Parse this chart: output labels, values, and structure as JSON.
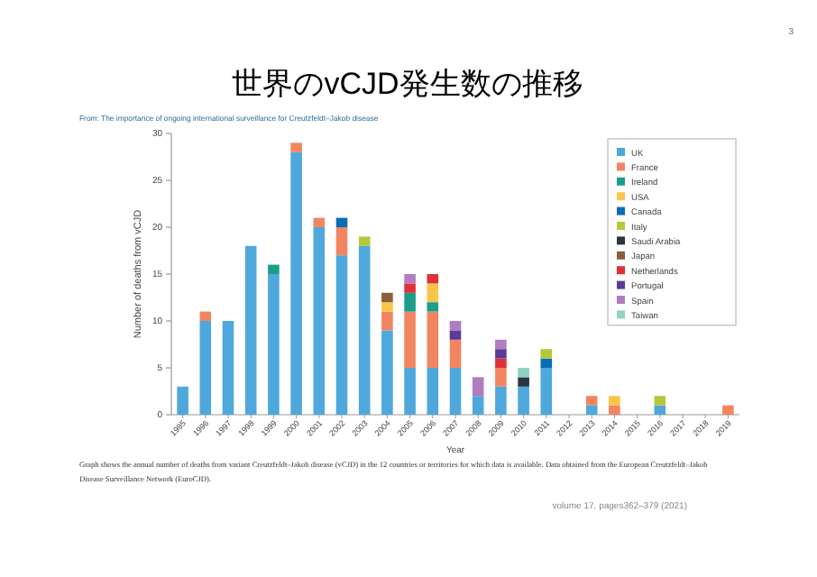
{
  "chart_data": {
    "type": "bar",
    "title": "世界のvCJD発生数の推移",
    "subtitle": "From: The importance of ongoing international surveillance for Creutzfeldt–Jakob disease",
    "xlabel": "Year",
    "ylabel": "Number of deaths from vCJD",
    "annotations": [
      "3",
      "Graph shows the annual number of deaths from variant Creutzfeldt–Jakob disease (vCJD) in the 12 countries or territories for which data is available. Data obtained from the European Creutzfeldt–Jakob Disease Surveillance Network (EuroCJD).",
      "volume 17, pages362–379 (2021)"
    ],
    "categories": [
      "1995",
      "1996",
      "1997",
      "1998",
      "1999",
      "2000",
      "2001",
      "2002",
      "2003",
      "2004",
      "2005",
      "2006",
      "2007",
      "2008",
      "2009",
      "2010",
      "2011",
      "2012",
      "2013",
      "2014",
      "2015",
      "2016",
      "2017",
      "2018",
      "2019"
    ],
    "stacked": true,
    "ylim": [
      0,
      30
    ],
    "yticks": [
      0,
      5,
      10,
      15,
      20,
      25,
      30
    ],
    "grid": false,
    "legend": "top right",
    "series": [
      {
        "name": "UK",
        "color": "#4fa8dc",
        "values": [
          3,
          10,
          10,
          18,
          15,
          28,
          20,
          17,
          18,
          9,
          5,
          5,
          5,
          2,
          3,
          3,
          5,
          0,
          1,
          0,
          0,
          1,
          0,
          0,
          0
        ]
      },
      {
        "name": "France",
        "color": "#f28561",
        "values": [
          0,
          1,
          0,
          0,
          0,
          1,
          1,
          3,
          0,
          2,
          6,
          6,
          3,
          0,
          2,
          0,
          0,
          0,
          1,
          1,
          0,
          0,
          0,
          0,
          1
        ]
      },
      {
        "name": "Ireland",
        "color": "#1a9e8a",
        "values": [
          0,
          0,
          0,
          0,
          1,
          0,
          0,
          0,
          0,
          0,
          2,
          1,
          0,
          0,
          0,
          0,
          0,
          0,
          0,
          0,
          0,
          0,
          0,
          0,
          0
        ]
      },
      {
        "name": "USA",
        "color": "#fcc54a",
        "values": [
          0,
          0,
          0,
          0,
          0,
          0,
          0,
          0,
          0,
          1,
          0,
          2,
          0,
          0,
          0,
          0,
          0,
          0,
          0,
          1,
          0,
          0,
          0,
          0,
          0
        ]
      },
      {
        "name": "Canada",
        "color": "#0b6db5",
        "values": [
          0,
          0,
          0,
          0,
          0,
          0,
          0,
          1,
          0,
          0,
          0,
          0,
          0,
          0,
          0,
          0,
          1,
          0,
          0,
          0,
          0,
          0,
          0,
          0,
          0
        ]
      },
      {
        "name": "Italy",
        "color": "#b5c83a",
        "values": [
          0,
          0,
          0,
          0,
          0,
          0,
          0,
          0,
          1,
          0,
          0,
          0,
          0,
          0,
          0,
          0,
          1,
          0,
          0,
          0,
          0,
          1,
          0,
          0,
          0
        ]
      },
      {
        "name": "Saudi Arabia",
        "color": "#2b3440",
        "values": [
          0,
          0,
          0,
          0,
          0,
          0,
          0,
          0,
          0,
          0,
          0,
          0,
          0,
          0,
          0,
          1,
          0,
          0,
          0,
          0,
          0,
          0,
          0,
          0,
          0
        ]
      },
      {
        "name": "Japan",
        "color": "#8b5e3c",
        "values": [
          0,
          0,
          0,
          0,
          0,
          0,
          0,
          0,
          0,
          1,
          0,
          0,
          0,
          0,
          0,
          0,
          0,
          0,
          0,
          0,
          0,
          0,
          0,
          0,
          0
        ]
      },
      {
        "name": "Netherlands",
        "color": "#e0303a",
        "values": [
          0,
          0,
          0,
          0,
          0,
          0,
          0,
          0,
          0,
          0,
          1,
          1,
          0,
          0,
          1,
          0,
          0,
          0,
          0,
          0,
          0,
          0,
          0,
          0,
          0
        ]
      },
      {
        "name": "Portugal",
        "color": "#5b3a98",
        "values": [
          0,
          0,
          0,
          0,
          0,
          0,
          0,
          0,
          0,
          0,
          0,
          0,
          1,
          0,
          1,
          0,
          0,
          0,
          0,
          0,
          0,
          0,
          0,
          0,
          0
        ]
      },
      {
        "name": "Spain",
        "color": "#b27cbf",
        "values": [
          0,
          0,
          0,
          0,
          0,
          0,
          0,
          0,
          0,
          0,
          1,
          0,
          1,
          2,
          1,
          0,
          0,
          0,
          0,
          0,
          0,
          0,
          0,
          0,
          0
        ]
      },
      {
        "name": "Taiwan",
        "color": "#8fd3c0",
        "values": [
          0,
          0,
          0,
          0,
          0,
          0,
          0,
          0,
          0,
          0,
          0,
          0,
          0,
          0,
          0,
          1,
          0,
          0,
          0,
          0,
          0,
          0,
          0,
          0,
          0
        ]
      }
    ]
  }
}
